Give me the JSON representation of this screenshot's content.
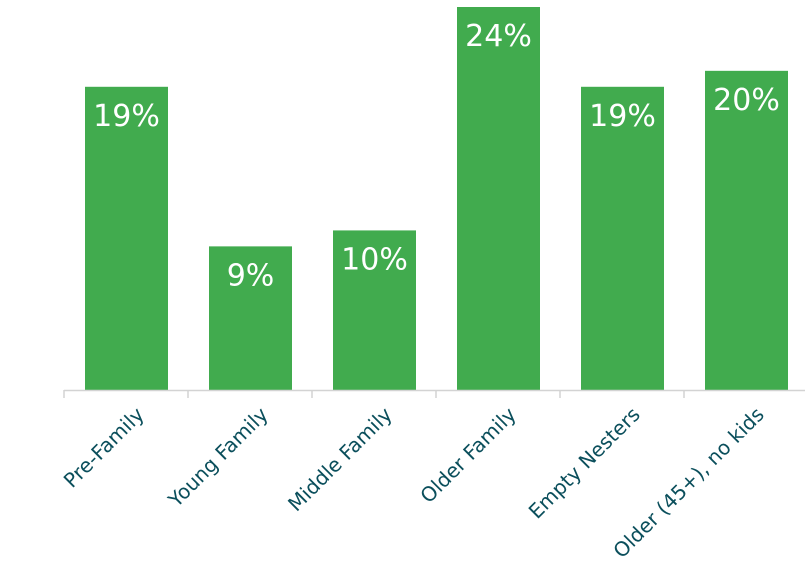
{
  "chart_data": {
    "type": "bar",
    "categories": [
      "Pre-Family",
      "Young Family",
      "Middle Family",
      "Older Family",
      "Empty Nesters",
      "Older (45+), no kids"
    ],
    "values": [
      19,
      9,
      10,
      24,
      19,
      20
    ],
    "value_labels": [
      "19%",
      "9%",
      "10%",
      "24%",
      "19%",
      "20%"
    ],
    "unit": "%",
    "ylim": [
      0,
      24
    ],
    "grid": false,
    "legend": "none",
    "colors": {
      "bar": "#41ab4e",
      "bar_label": "#ffffff",
      "category_label": "#0b4f5c",
      "axis": "#d3d3d3"
    }
  }
}
